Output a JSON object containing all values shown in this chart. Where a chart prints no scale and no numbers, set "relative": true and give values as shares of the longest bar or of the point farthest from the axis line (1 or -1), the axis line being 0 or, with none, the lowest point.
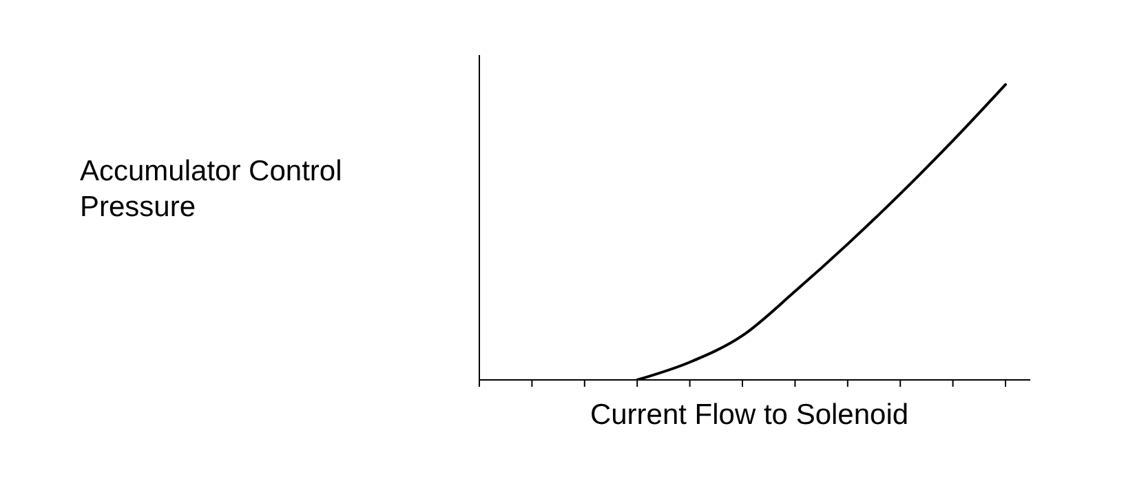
{
  "chart_data": {
    "type": "line",
    "xlabel": "Current Flow to Solenoid",
    "ylabel": "Accumulator Control Pressure",
    "relative": true,
    "categories": [
      null,
      null,
      null,
      null,
      null,
      null,
      null,
      null,
      null,
      null,
      null
    ],
    "series": [
      {
        "color": "#000000",
        "values": [
          null,
          null,
          null,
          0,
          0.06,
          0.15,
          0.3,
          0.46,
          0.63,
          0.81,
          1
        ]
      }
    ],
    "marker": "none",
    "line_style": "solid"
  }
}
